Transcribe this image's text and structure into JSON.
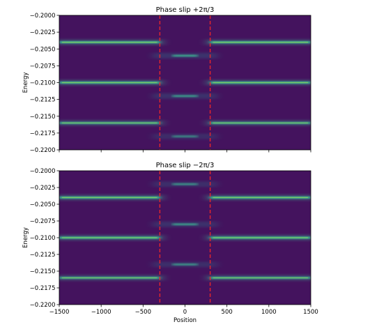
{
  "chart_data": [
    {
      "type": "heatmap",
      "title": "Phase slip +2π/3",
      "xlabel": "",
      "ylabel": "Energy",
      "xlim": [
        -1500,
        1500
      ],
      "ylim": [
        -0.22,
        -0.2
      ],
      "x_ticks": [],
      "x_tick_labels": [],
      "y_ticks": [
        -0.2,
        -0.2025,
        -0.205,
        -0.2075,
        -0.21,
        -0.2125,
        -0.215,
        -0.2175,
        -0.22
      ],
      "y_tick_labels": [
        "−0.2000",
        "−0.2025",
        "−0.2050",
        "−0.2075",
        "−0.2100",
        "−0.2125",
        "−0.2150",
        "−0.2175",
        "−0.2200"
      ],
      "background_color": "#44135e",
      "band_color": "#3dba94",
      "outer_bands": [
        {
          "energy": -0.204,
          "x_ranges": [
            [
              -1500,
              -300
            ],
            [
              300,
              1500
            ]
          ],
          "intensity": 0.95
        },
        {
          "energy": -0.21,
          "x_ranges": [
            [
              -1500,
              -300
            ],
            [
              300,
              1500
            ]
          ],
          "intensity": 0.95
        },
        {
          "energy": -0.216,
          "x_ranges": [
            [
              -1500,
              -300
            ],
            [
              300,
              1500
            ]
          ],
          "intensity": 0.85
        }
      ],
      "inner_bands": [
        {
          "energy": -0.206,
          "x_range": [
            -300,
            300
          ],
          "intensity": 0.7
        },
        {
          "energy": -0.212,
          "x_range": [
            -300,
            300
          ],
          "intensity": 0.65
        },
        {
          "energy": -0.218,
          "x_range": [
            -300,
            300
          ],
          "intensity": 0.55
        }
      ],
      "vlines": {
        "x": [
          -300,
          300
        ],
        "color": "#e8262a",
        "style": "dashed"
      }
    },
    {
      "type": "heatmap",
      "title": "Phase slip −2π/3",
      "xlabel": "Position",
      "ylabel": "Energy",
      "xlim": [
        -1500,
        1500
      ],
      "ylim": [
        -0.22,
        -0.2
      ],
      "x_ticks": [
        -1500,
        -1000,
        -500,
        0,
        500,
        1000,
        1500
      ],
      "x_tick_labels": [
        "−1500",
        "−1000",
        "−500",
        "0",
        "500",
        "1000",
        "1500"
      ],
      "y_ticks": [
        -0.2,
        -0.2025,
        -0.205,
        -0.2075,
        -0.21,
        -0.2125,
        -0.215,
        -0.2175,
        -0.22
      ],
      "y_tick_labels": [
        "−0.2000",
        "−0.2025",
        "−0.2050",
        "−0.2075",
        "−0.2100",
        "−0.2125",
        "−0.2150",
        "−0.2175",
        "−0.2200"
      ],
      "background_color": "#44135e",
      "band_color": "#3dba94",
      "outer_bands": [
        {
          "energy": -0.204,
          "x_ranges": [
            [
              -1500,
              -300
            ],
            [
              300,
              1500
            ]
          ],
          "intensity": 0.95
        },
        {
          "energy": -0.21,
          "x_ranges": [
            [
              -1500,
              -300
            ],
            [
              300,
              1500
            ]
          ],
          "intensity": 0.95
        },
        {
          "energy": -0.216,
          "x_ranges": [
            [
              -1500,
              -300
            ],
            [
              300,
              1500
            ]
          ],
          "intensity": 0.85
        }
      ],
      "inner_bands": [
        {
          "energy": -0.202,
          "x_range": [
            -300,
            300
          ],
          "intensity": 0.6
        },
        {
          "energy": -0.208,
          "x_range": [
            -300,
            300
          ],
          "intensity": 0.65
        },
        {
          "energy": -0.214,
          "x_range": [
            -300,
            300
          ],
          "intensity": 0.6
        }
      ],
      "vlines": {
        "x": [
          -300,
          300
        ],
        "color": "#e8262a",
        "style": "dashed"
      }
    }
  ]
}
